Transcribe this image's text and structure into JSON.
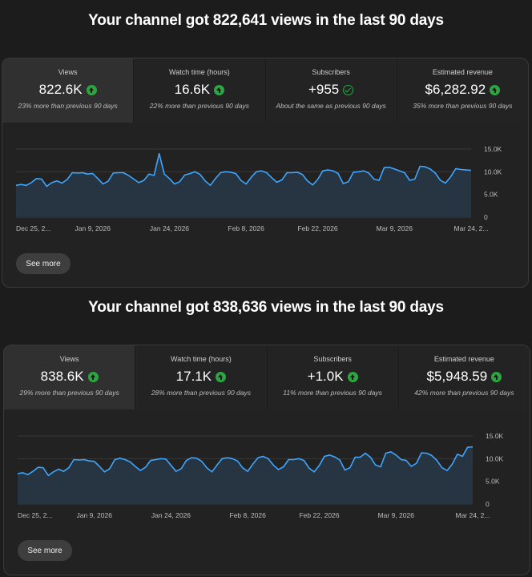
{
  "panels": [
    {
      "headline": "Your channel got 822,641 views in the last 90 days",
      "see_more": "See more",
      "stats": [
        {
          "label": "Views",
          "value": "822.6K",
          "indicator": "up",
          "change": "23% more than previous 90 days"
        },
        {
          "label": "Watch time (hours)",
          "value": "16.6K",
          "indicator": "up",
          "change": "22% more than previous 90 days"
        },
        {
          "label": "Subscribers",
          "value": "+955",
          "indicator": "check",
          "change": "About the same as previous 90 days"
        },
        {
          "label": "Estimated revenue",
          "value": "$6,282.92",
          "indicator": "up",
          "change": "35% more than previous 90 days"
        }
      ]
    },
    {
      "headline": "Your channel got 838,636 views in the last 90 days",
      "see_more": "See more",
      "stats": [
        {
          "label": "Views",
          "value": "838.6K",
          "indicator": "up",
          "change": "29% more than previous 90 days"
        },
        {
          "label": "Watch time (hours)",
          "value": "17.1K",
          "indicator": "up",
          "change": "28% more than previous 90 days"
        },
        {
          "label": "Subscribers",
          "value": "+1.0K",
          "indicator": "up",
          "change": "11% more than previous 90 days"
        },
        {
          "label": "Estimated revenue",
          "value": "$5,948.59",
          "indicator": "up",
          "change": "42% more than previous 90 days"
        }
      ]
    }
  ],
  "colors": {
    "line": "#3ea6ff",
    "area": "#263541",
    "grid": "#3a3a3a",
    "up": "#2ba640",
    "axis_text": "#bdbdbd"
  },
  "chart_data": [
    {
      "type": "area",
      "ylim": [
        0,
        15000
      ],
      "y_ticks": [
        "15.0K",
        "10.0K",
        "5.0K",
        "0"
      ],
      "y_tick_values": [
        15000,
        10000,
        5000,
        0
      ],
      "x_tick_labels": [
        "Dec 25, 2...",
        "Jan 9, 2026",
        "Jan 24, 2026",
        "Feb 8, 2026",
        "Feb 22, 2026",
        "Mar 9, 2026",
        "Mar 24, 2..."
      ],
      "x_tick_days": [
        0,
        15,
        30,
        45,
        59,
        74,
        89
      ],
      "grid": true,
      "values": [
        7000,
        7200,
        7000,
        7600,
        8500,
        8400,
        6800,
        7600,
        8000,
        7500,
        8300,
        9800,
        9700,
        9800,
        9500,
        9600,
        8500,
        7300,
        7900,
        9700,
        9800,
        9800,
        9200,
        8400,
        7600,
        8100,
        9500,
        9200,
        14000,
        9500,
        8500,
        7300,
        7800,
        9300,
        9600,
        10000,
        9400,
        8000,
        7000,
        8500,
        9800,
        10000,
        9900,
        9600,
        8100,
        7300,
        8800,
        10000,
        10200,
        9800,
        8700,
        7700,
        8200,
        9800,
        9800,
        9900,
        9400,
        8000,
        7100,
        8300,
        10200,
        10400,
        10200,
        9600,
        7400,
        7800,
        9900,
        10000,
        10200,
        9700,
        8400,
        8100,
        10900,
        11000,
        10600,
        10200,
        9800,
        8100,
        8400,
        11200,
        11100,
        10600,
        9700,
        8100,
        7500,
        8900,
        10700,
        10500,
        10400,
        10300
      ]
    },
    {
      "type": "area",
      "ylim": [
        0,
        15000
      ],
      "y_ticks": [
        "15.0K",
        "10.0K",
        "5.0K",
        "0"
      ],
      "y_tick_values": [
        15000,
        10000,
        5000,
        0
      ],
      "x_tick_labels": [
        "Dec 25, 2...",
        "Jan 9, 2026",
        "Jan 24, 2026",
        "Feb 8, 2026",
        "Feb 22, 2026",
        "Mar 9, 2026",
        "Mar 24, 2..."
      ],
      "x_tick_days": [
        0,
        15,
        30,
        45,
        59,
        74,
        89
      ],
      "grid": true,
      "values": [
        6700,
        6900,
        6500,
        7200,
        8100,
        8000,
        6300,
        7100,
        7700,
        7200,
        8000,
        9800,
        9700,
        9800,
        9500,
        9400,
        8300,
        7100,
        7800,
        9800,
        10100,
        9800,
        9300,
        8300,
        7400,
        8100,
        9600,
        9800,
        10000,
        9900,
        8500,
        7200,
        7800,
        9600,
        10200,
        10100,
        9400,
        8000,
        7100,
        8600,
        10000,
        10200,
        10000,
        9500,
        8000,
        7200,
        8800,
        10200,
        10500,
        10000,
        8600,
        7600,
        8200,
        9800,
        9800,
        10000,
        9600,
        7900,
        7100,
        8500,
        10500,
        10800,
        10400,
        9700,
        7500,
        8000,
        10300,
        10300,
        11200,
        10300,
        8600,
        8200,
        11200,
        11500,
        10800,
        9800,
        9600,
        8300,
        9000,
        11300,
        11200,
        10700,
        9600,
        8000,
        7400,
        8800,
        11000,
        10500,
        12500,
        12600
      ]
    }
  ]
}
